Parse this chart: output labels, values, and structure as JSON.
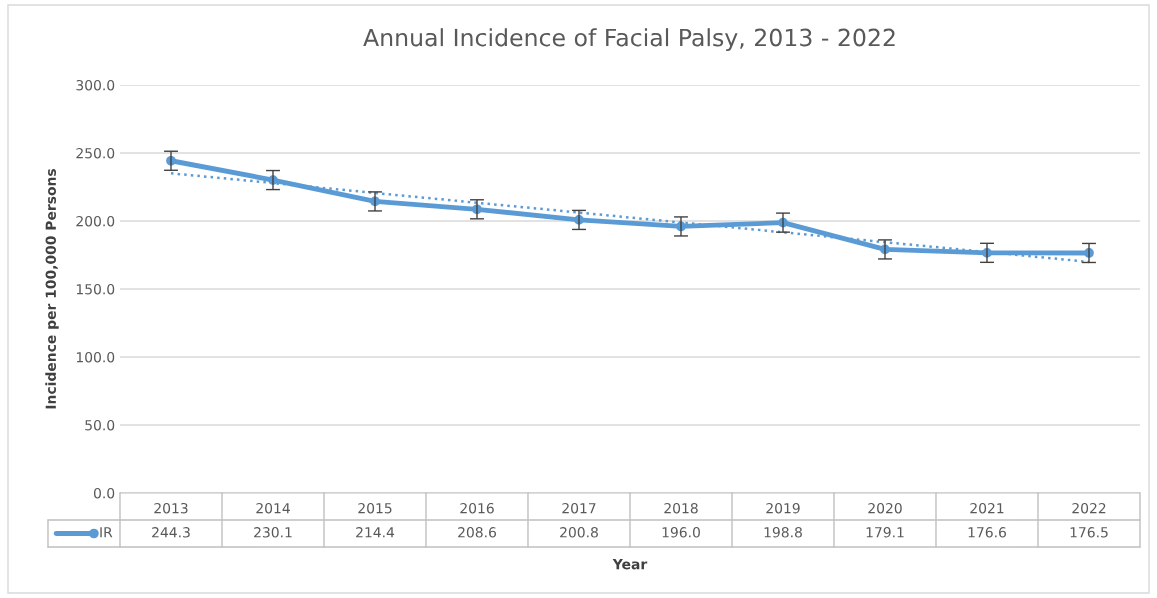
{
  "chart_data": {
    "type": "line",
    "title": "Annual Incidence of Facial Palsy, 2013 - 2022",
    "xlabel": "Year",
    "ylabel": "Incidence per 100,000 Persons",
    "categories": [
      "2013",
      "2014",
      "2015",
      "2016",
      "2017",
      "2018",
      "2019",
      "2020",
      "2021",
      "2022"
    ],
    "series": [
      {
        "name": "IR",
        "color": "#5b9bd5",
        "marker": "circle",
        "line_style": "solid",
        "values": [
          244.3,
          230.1,
          214.4,
          208.6,
          200.8,
          196.0,
          198.8,
          179.1,
          176.6,
          176.5
        ],
        "errors": [
          7,
          7,
          7,
          7,
          7,
          7,
          7,
          7,
          7,
          7
        ],
        "value_labels": [
          "244.3",
          "230.1",
          "214.4",
          "208.6",
          "200.8",
          "196.0",
          "198.8",
          "179.1",
          "176.6",
          "176.5"
        ]
      },
      {
        "color": "#5b9bd5",
        "marker": "none",
        "line_style": "dotted",
        "values": [
          235.1,
          227.9,
          220.6,
          213.4,
          206.2,
          198.9,
          191.7,
          184.4,
          177.2,
          169.9
        ]
      }
    ],
    "ylim": [
      0,
      300
    ],
    "yticks": [
      {
        "value": 0,
        "label": "0.0"
      },
      {
        "value": 50,
        "label": "50.0"
      },
      {
        "value": 100,
        "label": "100.0"
      },
      {
        "value": 150,
        "label": "150.0"
      },
      {
        "value": 200,
        "label": "200.0"
      },
      {
        "value": 250,
        "label": "250.0"
      },
      {
        "value": 300,
        "label": "300.0"
      }
    ],
    "grid": "y",
    "legend": "bottom"
  }
}
